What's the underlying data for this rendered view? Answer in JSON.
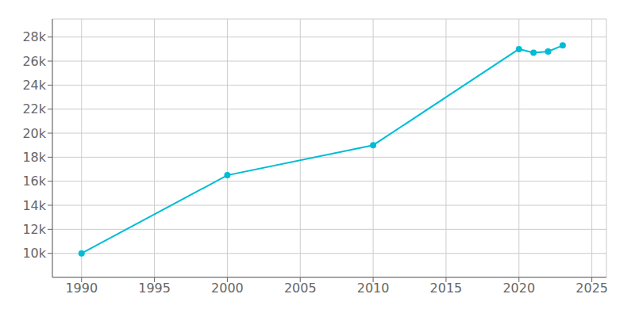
{
  "chart_data": {
    "type": "line",
    "x": [
      1990,
      2000,
      2010,
      2020,
      2021,
      2022,
      2023
    ],
    "values": [
      10000,
      16500,
      19000,
      27000,
      26700,
      26800,
      27300
    ],
    "color": "#00bcd4",
    "marker": "circle",
    "grid": true,
    "xlim": [
      1988,
      2026
    ],
    "ylim": [
      8000,
      29500
    ],
    "xticks": [
      1990,
      1995,
      2000,
      2005,
      2010,
      2015,
      2020,
      2025
    ],
    "yticks": [
      {
        "value": 10000,
        "label": "10k"
      },
      {
        "value": 12000,
        "label": "12k"
      },
      {
        "value": 14000,
        "label": "14k"
      },
      {
        "value": 16000,
        "label": "16k"
      },
      {
        "value": 18000,
        "label": "18k"
      },
      {
        "value": 20000,
        "label": "20k"
      },
      {
        "value": 22000,
        "label": "22k"
      },
      {
        "value": 24000,
        "label": "24k"
      },
      {
        "value": 26000,
        "label": "26k"
      },
      {
        "value": 28000,
        "label": "28k"
      }
    ]
  }
}
